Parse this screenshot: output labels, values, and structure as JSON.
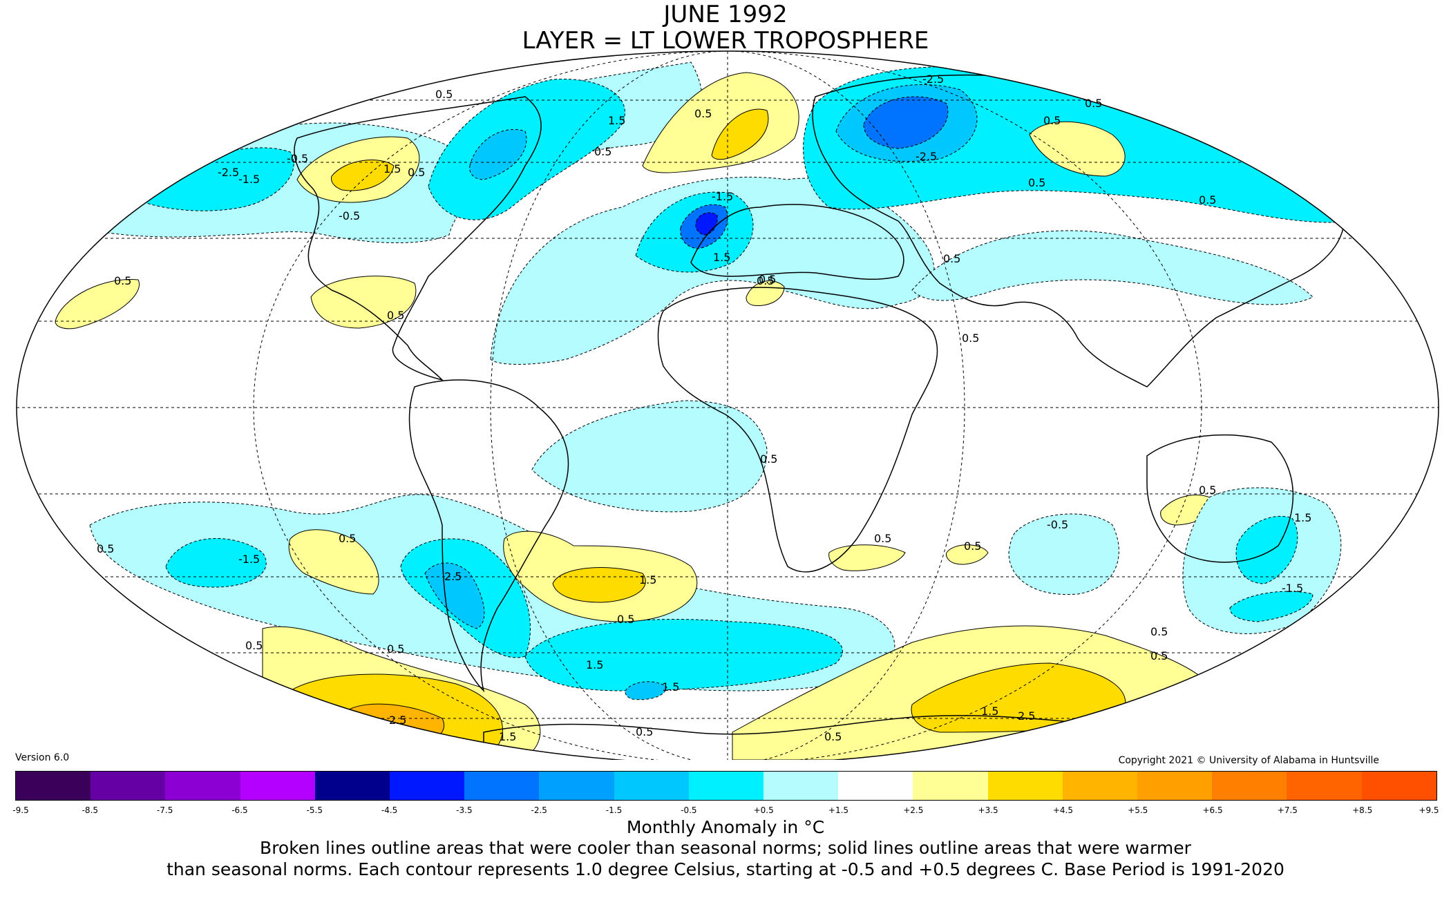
{
  "title": {
    "line1": "JUNE 1992",
    "line2": "LAYER = LT LOWER TROPOSPHERE"
  },
  "version": "Version 6.0",
  "copyright": "Copyright 2021 © University of Alabama in Huntsville",
  "colorbar": {
    "ticks": [
      "-9.5",
      "-8.5",
      "-7.5",
      "-6.5",
      "-5.5",
      "-4.5",
      "-3.5",
      "-2.5",
      "-1.5",
      "-0.5",
      "+0.5",
      "+1.5",
      "+2.5",
      "+3.5",
      "+4.5",
      "+5.5",
      "+6.5",
      "+7.5",
      "+8.5",
      "+9.5"
    ],
    "colors": [
      "#3a005a",
      "#6400a4",
      "#8c00d4",
      "#b400ff",
      "#00008c",
      "#0018ff",
      "#0073ff",
      "#00a0ff",
      "#00c8ff",
      "#00f0ff",
      "#b4fcff",
      "#ffffff",
      "#ffff96",
      "#ffdc00",
      "#ffb400",
      "#ffa000",
      "#ff8000",
      "#ff6400",
      "#ff5000",
      "#ff0000",
      "#e60000",
      "#b40000"
    ],
    "title": "Monthly Anomaly in °C"
  },
  "caption": {
    "line1": "Broken lines outline areas that were cooler than seasonal norms; solid lines outline areas that were warmer",
    "line2": "than seasonal norms. Each contour represents 1.0 degree Celsius, starting at -0.5 and +0.5 degrees C. Base Period is 1991-2020"
  },
  "contour_labels": [
    "0.5",
    "-0.5",
    "1.5",
    "-1.5",
    "2.5",
    "-2.5"
  ],
  "colors": {
    "cool_light": "#b4fcff",
    "cool_mid": "#00f0ff",
    "cool_deep": "#00c8ff",
    "cool_deeper": "#0073ff",
    "cool_darkest": "#0018ff",
    "warm_light": "#ffff96",
    "warm_mid": "#ffdc00",
    "warm_deep": "#ffb400"
  }
}
